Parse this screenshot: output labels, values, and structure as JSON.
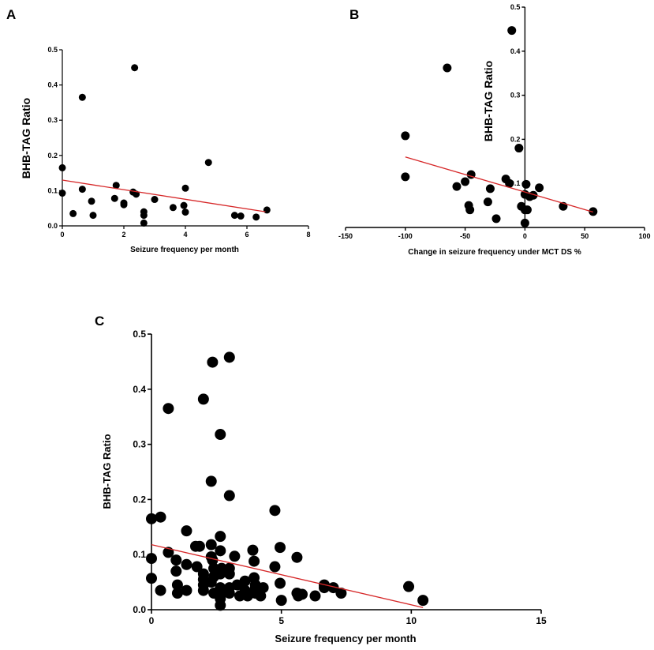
{
  "chart_data": [
    {
      "panel": "A",
      "type": "scatter",
      "title": "",
      "xlabel": "Seizure frequency per month",
      "ylabel": "BHB-TAG Ratio",
      "xlim": [
        0,
        8
      ],
      "ylim": [
        0,
        0.5
      ],
      "xticks": [
        0,
        2,
        4,
        6,
        8
      ],
      "yticks": [
        0,
        0.1,
        0.2,
        0.3,
        0.4,
        0.5
      ],
      "xtick_labels": [
        "0",
        "2",
        "4",
        "6",
        "8"
      ],
      "ytick_labels": [
        "0.0",
        "0.1",
        "0.2",
        "0.3",
        "0.4",
        "0.5"
      ],
      "points": [
        {
          "x": 0.0,
          "y": 0.165
        },
        {
          "x": 0.0,
          "y": 0.093
        },
        {
          "x": 0.35,
          "y": 0.035
        },
        {
          "x": 0.65,
          "y": 0.365
        },
        {
          "x": 0.65,
          "y": 0.104
        },
        {
          "x": 0.95,
          "y": 0.07
        },
        {
          "x": 1.0,
          "y": 0.03
        },
        {
          "x": 1.75,
          "y": 0.115
        },
        {
          "x": 1.7,
          "y": 0.078
        },
        {
          "x": 2.0,
          "y": 0.065
        },
        {
          "x": 2.0,
          "y": 0.06
        },
        {
          "x": 2.35,
          "y": 0.449
        },
        {
          "x": 2.3,
          "y": 0.096
        },
        {
          "x": 2.4,
          "y": 0.09
        },
        {
          "x": 2.65,
          "y": 0.04
        },
        {
          "x": 2.65,
          "y": 0.03
        },
        {
          "x": 2.65,
          "y": 0.008
        },
        {
          "x": 3.0,
          "y": 0.075
        },
        {
          "x": 3.6,
          "y": 0.052
        },
        {
          "x": 4.0,
          "y": 0.107
        },
        {
          "x": 3.95,
          "y": 0.058
        },
        {
          "x": 4.0,
          "y": 0.039
        },
        {
          "x": 4.75,
          "y": 0.18
        },
        {
          "x": 5.6,
          "y": 0.03
        },
        {
          "x": 5.8,
          "y": 0.028
        },
        {
          "x": 6.3,
          "y": 0.025
        },
        {
          "x": 6.65,
          "y": 0.045
        }
      ],
      "fit_line": {
        "x": [
          0.0,
          6.6
        ],
        "y": [
          0.13,
          0.04
        ],
        "color": "#d62728"
      }
    },
    {
      "panel": "B",
      "type": "scatter",
      "title": "",
      "xlabel": "Change in seizure frequency under MCT DS %",
      "ylabel": "BHB-TAG Ratio",
      "xlim": [
        -150,
        100
      ],
      "ylim": [
        0,
        0.5
      ],
      "xticks": [
        -150,
        -100,
        -50,
        0,
        50,
        100
      ],
      "yticks": [
        0.1,
        0.2,
        0.3,
        0.4,
        0.5
      ],
      "xtick_labels": [
        "-150",
        "-100",
        "-50",
        "0",
        "50",
        "100"
      ],
      "ytick_labels": [
        "0.1",
        "0.2",
        "0.3",
        "0.4",
        "0.5"
      ],
      "points": [
        {
          "x": -100,
          "y": 0.208
        },
        {
          "x": -100,
          "y": 0.115
        },
        {
          "x": -65,
          "y": 0.362
        },
        {
          "x": -57,
          "y": 0.093
        },
        {
          "x": -50,
          "y": 0.104
        },
        {
          "x": -45,
          "y": 0.12
        },
        {
          "x": -47,
          "y": 0.05
        },
        {
          "x": -46,
          "y": 0.04
        },
        {
          "x": -31,
          "y": 0.058
        },
        {
          "x": -29,
          "y": 0.088
        },
        {
          "x": -24,
          "y": 0.02
        },
        {
          "x": -16,
          "y": 0.11
        },
        {
          "x": -13,
          "y": 0.1
        },
        {
          "x": -11,
          "y": 0.447
        },
        {
          "x": -5,
          "y": 0.18
        },
        {
          "x": -3,
          "y": 0.048
        },
        {
          "x": 0,
          "y": 0.075
        },
        {
          "x": 0,
          "y": 0.04
        },
        {
          "x": 1,
          "y": 0.098
        },
        {
          "x": 2,
          "y": 0.04
        },
        {
          "x": 4,
          "y": 0.07
        },
        {
          "x": 7,
          "y": 0.073
        },
        {
          "x": 12,
          "y": 0.09
        },
        {
          "x": 32,
          "y": 0.048
        },
        {
          "x": 57,
          "y": 0.036
        },
        {
          "x": 0,
          "y": 0.01
        }
      ],
      "fit_line": {
        "x": [
          -100,
          57
        ],
        "y": [
          0.16,
          0.035
        ],
        "color": "#d62728"
      }
    },
    {
      "panel": "C",
      "type": "scatter",
      "title": "",
      "xlabel": "Seizure frequency per month",
      "ylabel": "BHB-TAG Ratio",
      "xlim": [
        0,
        15
      ],
      "ylim": [
        0,
        0.5
      ],
      "xticks": [
        0,
        5,
        10,
        15
      ],
      "yticks": [
        0,
        0.1,
        0.2,
        0.3,
        0.4,
        0.5
      ],
      "xtick_labels": [
        "0",
        "5",
        "10",
        "15"
      ],
      "ytick_labels": [
        "0.0",
        "0.1",
        "0.2",
        "0.3",
        "0.4",
        "0.5"
      ],
      "points": [
        {
          "x": 0.0,
          "y": 0.165
        },
        {
          "x": 0.35,
          "y": 0.168
        },
        {
          "x": 0.0,
          "y": 0.093
        },
        {
          "x": 0.0,
          "y": 0.057
        },
        {
          "x": 0.35,
          "y": 0.035
        },
        {
          "x": 0.65,
          "y": 0.365
        },
        {
          "x": 0.65,
          "y": 0.104
        },
        {
          "x": 0.95,
          "y": 0.09
        },
        {
          "x": 0.95,
          "y": 0.07
        },
        {
          "x": 1.0,
          "y": 0.045
        },
        {
          "x": 1.0,
          "y": 0.03
        },
        {
          "x": 1.35,
          "y": 0.143
        },
        {
          "x": 1.35,
          "y": 0.082
        },
        {
          "x": 1.35,
          "y": 0.035
        },
        {
          "x": 1.7,
          "y": 0.115
        },
        {
          "x": 1.85,
          "y": 0.115
        },
        {
          "x": 1.75,
          "y": 0.078
        },
        {
          "x": 2.0,
          "y": 0.382
        },
        {
          "x": 2.0,
          "y": 0.065
        },
        {
          "x": 2.0,
          "y": 0.055
        },
        {
          "x": 2.0,
          "y": 0.045
        },
        {
          "x": 2.0,
          "y": 0.035
        },
        {
          "x": 2.35,
          "y": 0.449
        },
        {
          "x": 2.3,
          "y": 0.233
        },
        {
          "x": 2.3,
          "y": 0.118
        },
        {
          "x": 2.3,
          "y": 0.096
        },
        {
          "x": 2.35,
          "y": 0.09
        },
        {
          "x": 2.4,
          "y": 0.075
        },
        {
          "x": 2.4,
          "y": 0.06
        },
        {
          "x": 2.3,
          "y": 0.05
        },
        {
          "x": 2.4,
          "y": 0.03
        },
        {
          "x": 2.65,
          "y": 0.318
        },
        {
          "x": 2.65,
          "y": 0.133
        },
        {
          "x": 2.65,
          "y": 0.107
        },
        {
          "x": 2.7,
          "y": 0.075
        },
        {
          "x": 2.65,
          "y": 0.065
        },
        {
          "x": 2.65,
          "y": 0.04
        },
        {
          "x": 2.7,
          "y": 0.03
        },
        {
          "x": 2.65,
          "y": 0.02
        },
        {
          "x": 2.65,
          "y": 0.008
        },
        {
          "x": 3.0,
          "y": 0.458
        },
        {
          "x": 3.0,
          "y": 0.207
        },
        {
          "x": 3.0,
          "y": 0.075
        },
        {
          "x": 3.0,
          "y": 0.065
        },
        {
          "x": 3.0,
          "y": 0.04
        },
        {
          "x": 3.0,
          "y": 0.03
        },
        {
          "x": 3.2,
          "y": 0.097
        },
        {
          "x": 3.3,
          "y": 0.045
        },
        {
          "x": 3.4,
          "y": 0.025
        },
        {
          "x": 3.6,
          "y": 0.052
        },
        {
          "x": 3.6,
          "y": 0.035
        },
        {
          "x": 3.7,
          "y": 0.025
        },
        {
          "x": 3.9,
          "y": 0.108
        },
        {
          "x": 3.95,
          "y": 0.088
        },
        {
          "x": 3.95,
          "y": 0.058
        },
        {
          "x": 4.0,
          "y": 0.045
        },
        {
          "x": 4.0,
          "y": 0.039
        },
        {
          "x": 4.0,
          "y": 0.03
        },
        {
          "x": 4.2,
          "y": 0.025
        },
        {
          "x": 4.3,
          "y": 0.04
        },
        {
          "x": 4.75,
          "y": 0.18
        },
        {
          "x": 4.75,
          "y": 0.078
        },
        {
          "x": 4.95,
          "y": 0.113
        },
        {
          "x": 4.95,
          "y": 0.048
        },
        {
          "x": 5.0,
          "y": 0.017
        },
        {
          "x": 5.6,
          "y": 0.095
        },
        {
          "x": 5.6,
          "y": 0.03
        },
        {
          "x": 5.65,
          "y": 0.025
        },
        {
          "x": 5.8,
          "y": 0.028
        },
        {
          "x": 6.3,
          "y": 0.025
        },
        {
          "x": 6.65,
          "y": 0.045
        },
        {
          "x": 6.65,
          "y": 0.04
        },
        {
          "x": 7.0,
          "y": 0.04
        },
        {
          "x": 7.3,
          "y": 0.03
        },
        {
          "x": 9.9,
          "y": 0.042
        },
        {
          "x": 10.45,
          "y": 0.017
        }
      ],
      "fit_line": {
        "x": [
          0.0,
          10.45
        ],
        "y": [
          0.118,
          0.004
        ],
        "color": "#d62728"
      }
    }
  ]
}
